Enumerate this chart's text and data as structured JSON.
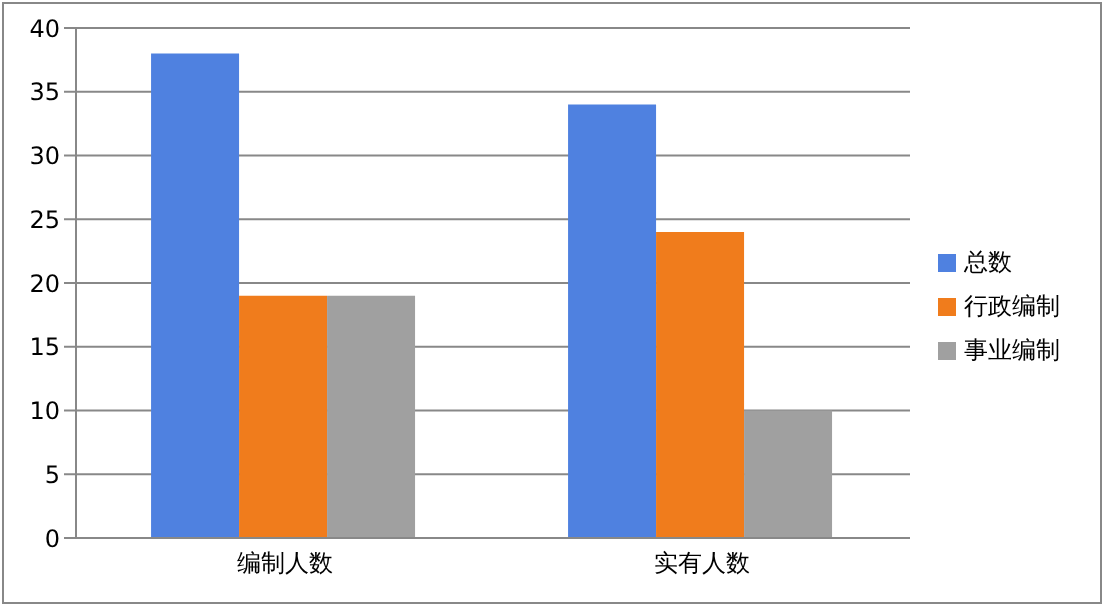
{
  "chart_data": {
    "type": "bar",
    "categories": [
      "编制人数",
      "实有人数"
    ],
    "series": [
      {
        "name": "总数",
        "color": "#4f81e0",
        "values": [
          38,
          34
        ]
      },
      {
        "name": "行政编制",
        "color": "#f07c1c",
        "values": [
          19,
          24
        ]
      },
      {
        "name": "事业编制",
        "color": "#a0a0a0",
        "values": [
          19,
          10
        ]
      }
    ],
    "ylim": [
      0,
      40
    ],
    "yticks": [
      0,
      5,
      10,
      15,
      20,
      25,
      30,
      35,
      40
    ],
    "grid": "y",
    "legend": "right"
  }
}
